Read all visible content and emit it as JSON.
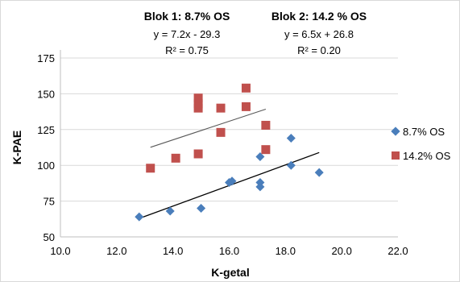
{
  "chart_data": {
    "type": "scatter",
    "xlabel": "K-getal",
    "ylabel": "K-PAE",
    "xlim": [
      10.0,
      22.0
    ],
    "ylim": [
      50,
      175
    ],
    "x_ticks": [
      "10.0",
      "12.0",
      "14.0",
      "16.0",
      "18.0",
      "20.0",
      "22.0"
    ],
    "y_ticks": [
      "50",
      "75",
      "100",
      "125",
      "150",
      "175"
    ],
    "grid": "horizontal",
    "legend_position": "right",
    "series": [
      {
        "name": "8.7% OS",
        "color": "#4a7ebb",
        "marker": "diamond",
        "points": [
          [
            12.8,
            64
          ],
          [
            13.9,
            68
          ],
          [
            15.0,
            70
          ],
          [
            16.0,
            88
          ],
          [
            16.1,
            89
          ],
          [
            17.1,
            85
          ],
          [
            17.1,
            88
          ],
          [
            17.1,
            106
          ],
          [
            18.2,
            100
          ],
          [
            18.2,
            119
          ],
          [
            19.2,
            95
          ]
        ],
        "trendline": {
          "slope": 7.2,
          "intercept": -29.3,
          "x_range": [
            12.8,
            19.2
          ]
        }
      },
      {
        "name": "14.2% OS",
        "color": "#c0504d",
        "marker": "square",
        "points": [
          [
            13.2,
            98
          ],
          [
            14.1,
            105
          ],
          [
            14.9,
            108
          ],
          [
            14.9,
            140
          ],
          [
            14.9,
            143
          ],
          [
            14.9,
            147
          ],
          [
            15.7,
            123
          ],
          [
            15.7,
            140
          ],
          [
            16.6,
            141
          ],
          [
            16.6,
            154
          ],
          [
            17.3,
            111
          ],
          [
            17.3,
            128
          ]
        ],
        "trendline": {
          "slope": 6.5,
          "intercept": 26.8,
          "x_range": [
            13.2,
            17.3
          ]
        }
      }
    ],
    "annotations": [
      {
        "title": "Blok 1: 8.7% OS",
        "equation": "y = 7.2x - 29.3",
        "r2": "R² = 0.75"
      },
      {
        "title": "Blok 2: 14.2 % OS",
        "equation": "y = 6.5x + 26.8",
        "r2": "R² = 0.20"
      }
    ]
  }
}
